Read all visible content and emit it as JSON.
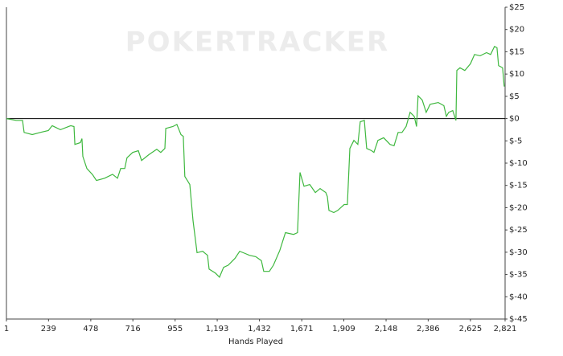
{
  "chart_data": {
    "type": "line",
    "watermark": "POKERTRACKER",
    "x_label": "Hands Played",
    "xlim": [
      1,
      2821
    ],
    "ylim": [
      -45,
      25
    ],
    "xticks": [
      1,
      239,
      478,
      716,
      955,
      {
        "value": 1193,
        "label": "1,193"
      },
      {
        "value": 1432,
        "label": "1,432"
      },
      {
        "value": 1671,
        "label": "1,671"
      },
      {
        "value": 1909,
        "label": "1,909"
      },
      {
        "value": 2148,
        "label": "2,148"
      },
      {
        "value": 2386,
        "label": "2,386"
      },
      {
        "value": 2625,
        "label": "2,625"
      },
      {
        "value": 2821,
        "label": "2,821"
      }
    ],
    "yticks": [
      {
        "value": 25,
        "label": "$25"
      },
      {
        "value": 20,
        "label": "$20"
      },
      {
        "value": 15,
        "label": "$15"
      },
      {
        "value": 10,
        "label": "$10"
      },
      {
        "value": 5,
        "label": "$5"
      },
      {
        "value": 0,
        "label": "$0"
      },
      {
        "value": -5,
        "label": "$-5"
      },
      {
        "value": -10,
        "label": "$-10"
      },
      {
        "value": -15,
        "label": "$-15"
      },
      {
        "value": -20,
        "label": "$-20"
      },
      {
        "value": -25,
        "label": "$-25"
      },
      {
        "value": -30,
        "label": "$-30"
      },
      {
        "value": -35,
        "label": "$-35"
      },
      {
        "value": -40,
        "label": "$-40"
      },
      {
        "value": -45,
        "label": "$-45"
      }
    ],
    "zero_line": true,
    "series": [
      {
        "color": "#3fb83f",
        "x": [
          1,
          56,
          92,
          101,
          147,
          192,
          238,
          260,
          306,
          365,
          383,
          388,
          419,
          428,
          433,
          456,
          488,
          510,
          556,
          601,
          629,
          647,
          670,
          683,
          715,
          747,
          765,
          806,
          851,
          874,
          897,
          902,
          942,
          965,
          988,
          1001,
          1010,
          1038,
          1056,
          1079,
          1111,
          1138,
          1147,
          1183,
          1206,
          1229,
          1256,
          1293,
          1320,
          1352,
          1375,
          1411,
          1443,
          1456,
          1488,
          1511,
          1547,
          1579,
          1625,
          1647,
          1661,
          1684,
          1716,
          1748,
          1775,
          1807,
          1816,
          1825,
          1852,
          1875,
          1911,
          1929,
          1943,
          1966,
          1988,
          2002,
          2025,
          2038,
          2066,
          2079,
          2102,
          2134,
          2170,
          2193,
          2216,
          2238,
          2261,
          2284,
          2307,
          2320,
          2329,
          2352,
          2375,
          2397,
          2443,
          2475,
          2489,
          2502,
          2525,
          2543,
          2548,
          2566,
          2593,
          2625,
          2648,
          2680,
          2716,
          2739,
          2761,
          2775,
          2784,
          2807,
          2816
        ],
        "values": [
          0,
          -0.4,
          -0.4,
          -3.1,
          -3.6,
          -3.1,
          -2.7,
          -1.6,
          -2.5,
          -1.6,
          -1.8,
          -5.8,
          -5.4,
          -4.5,
          -8.5,
          -11.2,
          -12.6,
          -13.9,
          -13.4,
          -12.5,
          -13.4,
          -11.2,
          -11.2,
          -8.8,
          -7.6,
          -7.2,
          -9.4,
          -8.1,
          -6.9,
          -7.6,
          -6.7,
          -2.2,
          -1.8,
          -1.3,
          -3.6,
          -4,
          -13,
          -14.8,
          -22.9,
          -30.1,
          -29.8,
          -30.7,
          -33.8,
          -34.7,
          -35.6,
          -33.4,
          -32.9,
          -31.4,
          -29.8,
          -30.3,
          -30.7,
          -31,
          -31.9,
          -34.3,
          -34.3,
          -32.9,
          -29.6,
          -25.6,
          -26,
          -25.6,
          -12.1,
          -15.2,
          -14.8,
          -16.6,
          -15.7,
          -16.6,
          -17.5,
          -20.6,
          -21.1,
          -20.6,
          -19.3,
          -19.3,
          -6.7,
          -4.9,
          -5.8,
          -0.7,
          -0.4,
          -6.7,
          -7.2,
          -7.6,
          -4.9,
          -4.3,
          -5.8,
          -6.1,
          -3.1,
          -3.1,
          -1.8,
          1.4,
          0.5,
          -1.8,
          5.1,
          4.2,
          1.4,
          3.2,
          3.6,
          2.9,
          0.5,
          1.4,
          1.8,
          -0.4,
          10.8,
          11.4,
          10.8,
          12.3,
          14.4,
          14.1,
          14.8,
          14.4,
          16.2,
          15.9,
          11.9,
          11.4,
          7.2
        ]
      }
    ]
  }
}
